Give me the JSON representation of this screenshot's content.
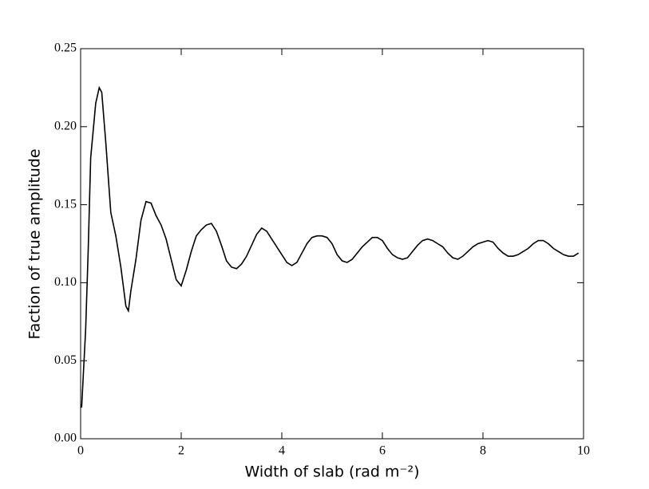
{
  "chart_data": {
    "type": "line",
    "xlabel": "Width of slab (rad m⁻²)",
    "ylabel": "Faction of true amplitude",
    "xlim": [
      0,
      10
    ],
    "ylim": [
      0,
      0.25
    ],
    "xticks": [
      0,
      2,
      4,
      6,
      8,
      10
    ],
    "yticks": [
      {
        "value": 0,
        "label": "0.00"
      },
      0.05,
      {
        "value": 0.1,
        "label": "0.10"
      },
      0.15,
      {
        "value": 0.2,
        "label": "0.20"
      },
      0.25
    ],
    "series": [
      {
        "color": "#000000",
        "x": [
          0.02,
          0.1,
          0.15,
          0.2,
          0.3,
          0.37,
          0.42,
          0.5,
          0.6,
          0.7,
          0.8,
          0.9,
          0.95,
          1.0,
          1.1,
          1.2,
          1.3,
          1.4,
          1.5,
          1.6,
          1.7,
          1.8,
          1.9,
          2.0,
          2.1,
          2.2,
          2.3,
          2.4,
          2.5,
          2.6,
          2.7,
          2.8,
          2.9,
          3.0,
          3.1,
          3.2,
          3.3,
          3.4,
          3.5,
          3.6,
          3.7,
          3.8,
          3.9,
          4.0,
          4.1,
          4.2,
          4.3,
          4.4,
          4.5,
          4.6,
          4.7,
          4.8,
          4.9,
          5.0,
          5.1,
          5.2,
          5.3,
          5.4,
          5.5,
          5.6,
          5.7,
          5.8,
          5.9,
          6.0,
          6.1,
          6.2,
          6.3,
          6.4,
          6.5,
          6.6,
          6.7,
          6.8,
          6.9,
          7.0,
          7.1,
          7.2,
          7.3,
          7.4,
          7.5,
          7.6,
          7.7,
          7.8,
          7.9,
          8.0,
          8.1,
          8.2,
          8.3,
          8.4,
          8.5,
          8.6,
          8.7,
          8.8,
          8.9,
          9.0,
          9.1,
          9.2,
          9.3,
          9.4,
          9.5,
          9.6,
          9.7,
          9.8,
          9.9
        ],
        "values": [
          0.02,
          0.07,
          0.12,
          0.18,
          0.215,
          0.225,
          0.222,
          0.19,
          0.145,
          0.13,
          0.11,
          0.085,
          0.082,
          0.095,
          0.115,
          0.14,
          0.152,
          0.151,
          0.143,
          0.137,
          0.128,
          0.115,
          0.102,
          0.098,
          0.108,
          0.12,
          0.13,
          0.134,
          0.137,
          0.138,
          0.133,
          0.124,
          0.114,
          0.11,
          0.109,
          0.112,
          0.117,
          0.124,
          0.131,
          0.135,
          0.133,
          0.128,
          0.123,
          0.118,
          0.113,
          0.111,
          0.113,
          0.119,
          0.125,
          0.129,
          0.13,
          0.13,
          0.129,
          0.125,
          0.118,
          0.114,
          0.113,
          0.115,
          0.119,
          0.123,
          0.126,
          0.129,
          0.129,
          0.127,
          0.122,
          0.118,
          0.116,
          0.115,
          0.116,
          0.12,
          0.124,
          0.127,
          0.128,
          0.127,
          0.125,
          0.123,
          0.119,
          0.116,
          0.115,
          0.117,
          0.12,
          0.123,
          0.125,
          0.126,
          0.127,
          0.126,
          0.122,
          0.119,
          0.117,
          0.117,
          0.118,
          0.12,
          0.122,
          0.125,
          0.127,
          0.127,
          0.125,
          0.122,
          0.12,
          0.118,
          0.117,
          0.117,
          0.119
        ]
      }
    ]
  }
}
